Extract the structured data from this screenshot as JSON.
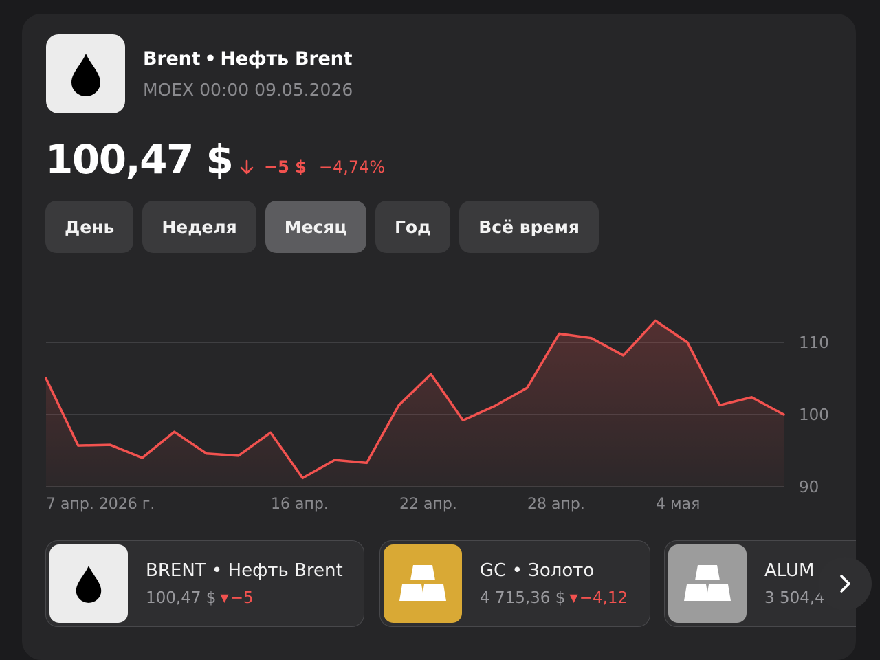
{
  "instrument": {
    "code": "Brent",
    "name": "Нефть Brent",
    "exchange_time": "MOEX 00:00 09.05.2026",
    "icon": "oil-drop-icon"
  },
  "quote": {
    "price": "100,47 $",
    "change_abs": "−5 $",
    "change_pct": "−4,74%",
    "direction_icon": "arrow-down-icon"
  },
  "periods": [
    {
      "label": "День",
      "active": false
    },
    {
      "label": "Неделя",
      "active": false
    },
    {
      "label": "Месяц",
      "active": true
    },
    {
      "label": "Год",
      "active": false
    },
    {
      "label": "Всё время",
      "active": false
    }
  ],
  "chart_data": {
    "type": "area",
    "x_tick_labels": [
      "7 апр. 2026 г.",
      "16 апр.",
      "22 апр.",
      "28 апр.",
      "4 мая"
    ],
    "y_ticks": [
      90,
      100,
      110
    ],
    "ylim": [
      90,
      115
    ],
    "grid": true,
    "series": [
      {
        "values": [
          105.0,
          95.7,
          95.8,
          94.0,
          97.6,
          94.6,
          94.3,
          97.5,
          91.2,
          93.7,
          93.3,
          101.3,
          105.6,
          99.2,
          101.2,
          103.7,
          111.2,
          110.6,
          108.2,
          113.0,
          110.0,
          101.3,
          102.4,
          100.0
        ]
      }
    ],
    "line_color": "#f2524f"
  },
  "tickers": [
    {
      "name": "BRENT • Нефть Brent",
      "price": "100,47 $",
      "change": "−5",
      "icon": "oil-drop-icon",
      "bg": "#ececec"
    },
    {
      "name": "GC • Золото",
      "price": "4 715,36 $",
      "change": "−4,12",
      "icon": "gold-bars-icon",
      "bg": "#d9a935"
    },
    {
      "name": "ALUM",
      "price": "3 504,4",
      "icon": "metal-bars-icon",
      "bg": "#9c9c9c"
    }
  ],
  "nav": {
    "next_icon": "chevron-right-icon"
  }
}
